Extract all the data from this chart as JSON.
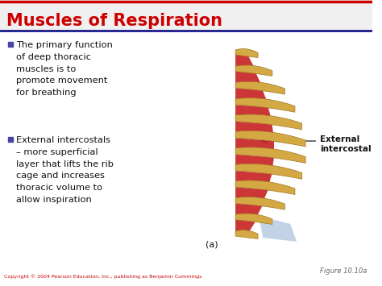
{
  "title": "Muscles of Respiration",
  "title_color": "#cc0000",
  "header_line_color_top": "#cc0000",
  "header_line_color_bottom": "#1a1a8c",
  "header_bg_color": "#f0f0f0",
  "bg_color": "#ffffff",
  "bullet_color": "#4444aa",
  "bullet1_lines": [
    "The primary function",
    "of deep thoracic",
    "muscles is to",
    "promote movement",
    "for breathing"
  ],
  "bullet2_lines": [
    "External intercostals",
    "– more superficial",
    "layer that lifts the rib",
    "cage and increases",
    "thoracic volume to",
    "allow inspiration"
  ],
  "label_text": "External\nintercostal",
  "sub_label": "(a)",
  "figure_label": "Figure 10.10a",
  "copyright": "Copyright © 2004 Pearson Education, Inc., publishing as Benjamin Cummings",
  "text_color": "#111111",
  "label_color": "#111111",
  "copyright_color": "#cc0000",
  "figure_label_color": "#666666",
  "rib_color": "#d4a843",
  "rib_edge_color": "#a07828",
  "muscle_color": "#c82020",
  "muscle_color2": "#a01818",
  "blue_color": "#b8cce4"
}
